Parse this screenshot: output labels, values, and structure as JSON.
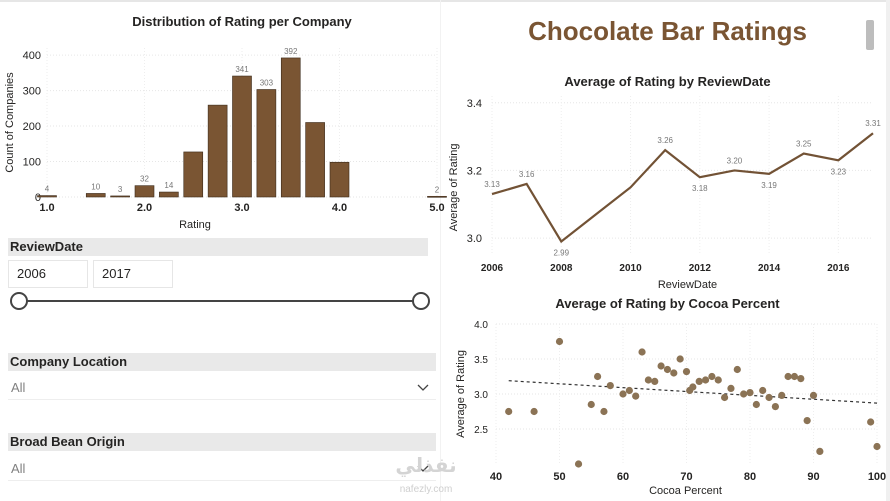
{
  "page": {
    "title": "Chocolate Bar Ratings"
  },
  "colors": {
    "bar": "#7a5533",
    "line": "#725235",
    "point": "#8b7355",
    "accent": "#7a5533"
  },
  "charts": {
    "distribution": {
      "title": "Distribution of Rating per Company"
    },
    "by_date": {
      "title": "Average of Rating by ReviewDate"
    },
    "by_cocoa": {
      "title": "Average of Rating by Cocoa Percent"
    }
  },
  "chart_data": [
    {
      "type": "bar",
      "title": "Distribution of Rating per Company",
      "xlabel": "Rating",
      "ylabel": "Count of Companies",
      "x": [
        1.0,
        1.5,
        1.75,
        2.0,
        2.25,
        2.5,
        2.75,
        3.0,
        3.25,
        3.5,
        3.75,
        4.0,
        5.0
      ],
      "values": [
        4,
        10,
        3,
        32,
        14,
        127,
        259,
        341,
        303,
        392,
        210,
        98,
        2
      ],
      "data_labels": [
        "4",
        "10",
        "3",
        "32",
        "14",
        "",
        "",
        "341",
        "303",
        "392",
        "",
        "",
        "2"
      ],
      "xticks": [
        "1.0",
        "2.0",
        "3.0",
        "4.0",
        "5.0"
      ],
      "yticks": [
        "0",
        "100",
        "200",
        "300",
        "400"
      ],
      "xlim": [
        1.0,
        5.0
      ],
      "ylim": [
        0,
        420
      ],
      "grid": true
    },
    {
      "type": "line",
      "title": "Average of Rating by ReviewDate",
      "xlabel": "ReviewDate",
      "ylabel": "Average of Rating",
      "x": [
        2006,
        2007,
        2008,
        2009,
        2010,
        2011,
        2012,
        2013,
        2014,
        2015,
        2016,
        2017
      ],
      "values": [
        3.13,
        3.16,
        2.99,
        3.07,
        3.15,
        3.26,
        3.18,
        3.2,
        3.19,
        3.25,
        3.23,
        3.31
      ],
      "data_labels": [
        "3.13",
        "3.16",
        "2.99",
        "",
        "",
        "3.26",
        "3.18",
        "3.20",
        "3.19",
        "3.25",
        "3.23",
        "3.31"
      ],
      "xticks": [
        "2006",
        "2008",
        "2010",
        "2012",
        "2014",
        "2016"
      ],
      "yticks": [
        "3.0",
        "3.2",
        "3.4"
      ],
      "ylim": [
        2.95,
        3.42
      ],
      "grid": true
    },
    {
      "type": "scatter",
      "title": "Average of Rating by Cocoa Percent",
      "xlabel": "Cocoa Percent",
      "ylabel": "Average of Rating",
      "points": [
        [
          42,
          2.75
        ],
        [
          46,
          2.75
        ],
        [
          50,
          3.75
        ],
        [
          53,
          2.0
        ],
        [
          55,
          2.85
        ],
        [
          56,
          3.25
        ],
        [
          57,
          2.75
        ],
        [
          58,
          3.12
        ],
        [
          60,
          3.0
        ],
        [
          61,
          3.05
        ],
        [
          62,
          2.97
        ],
        [
          63,
          3.6
        ],
        [
          64,
          3.2
        ],
        [
          65,
          3.18
        ],
        [
          66,
          3.4
        ],
        [
          67,
          3.35
        ],
        [
          68,
          3.3
        ],
        [
          69,
          3.5
        ],
        [
          70,
          3.32
        ],
        [
          70.5,
          3.05
        ],
        [
          71,
          3.1
        ],
        [
          72,
          3.18
        ],
        [
          73,
          3.2
        ],
        [
          74,
          3.25
        ],
        [
          75,
          3.2
        ],
        [
          76,
          2.95
        ],
        [
          77,
          3.08
        ],
        [
          78,
          3.35
        ],
        [
          79,
          3.0
        ],
        [
          80,
          3.02
        ],
        [
          81,
          2.85
        ],
        [
          82,
          3.05
        ],
        [
          83,
          2.95
        ],
        [
          84,
          2.82
        ],
        [
          85,
          2.98
        ],
        [
          86,
          3.25
        ],
        [
          87,
          3.25
        ],
        [
          88,
          3.22
        ],
        [
          89,
          2.62
        ],
        [
          90,
          2.98
        ],
        [
          91,
          2.18
        ],
        [
          99,
          2.6
        ],
        [
          100,
          2.25
        ]
      ],
      "trendline": [
        [
          42,
          3.19
        ],
        [
          100,
          2.87
        ]
      ],
      "xticks": [
        "40",
        "50",
        "60",
        "70",
        "80",
        "90",
        "100"
      ],
      "yticks": [
        "2.5",
        "3.0",
        "3.5",
        "4.0"
      ],
      "xlim": [
        40,
        100
      ],
      "ylim": [
        2.0,
        4.0
      ],
      "grid": true
    }
  ],
  "slicers": {
    "review_date": {
      "label": "ReviewDate",
      "start": "2006",
      "end": "2017"
    },
    "company_location": {
      "label": "Company Location",
      "value": "All"
    },
    "bean_origin": {
      "label": "Broad Bean Origin",
      "value": "All"
    }
  },
  "icons": {
    "dropdown": "chevron-down-icon"
  },
  "watermark": {
    "arabic": "نفذلي",
    "latin": "nafezly.com"
  }
}
